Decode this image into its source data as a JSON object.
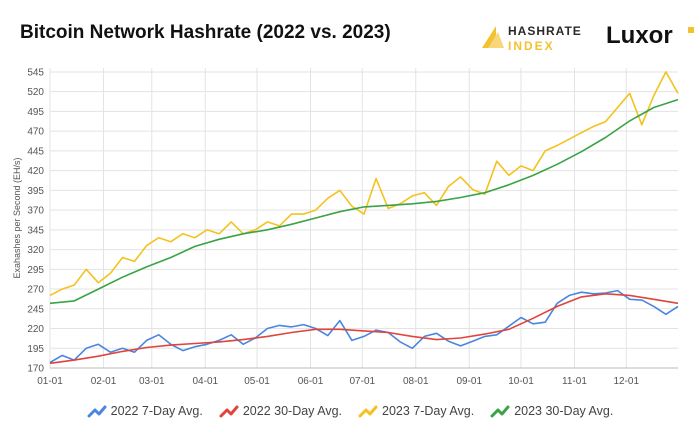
{
  "header": {
    "title": "Bitcoin Network Hashrate (2022 vs. 2023)",
    "logo_hashrate_line1": "HASHRATE",
    "logo_hashrate_line2": "INDEX",
    "logo_luxor": "Luxor"
  },
  "colors": {
    "s2022_7d": "#4a86e0",
    "s2022_30d": "#e0443a",
    "s2023_7d": "#f4c21f",
    "s2023_30d": "#3aa345",
    "logo_accent": "#f2c230"
  },
  "chart_data": {
    "type": "line",
    "ylabel": "Exahashes per Second (EH/s)",
    "xlabel": "",
    "ylim": [
      170,
      550
    ],
    "yticks": [
      170,
      195,
      220,
      245,
      270,
      295,
      320,
      345,
      370,
      395,
      420,
      445,
      470,
      495,
      520,
      545
    ],
    "xlim": [
      1,
      365
    ],
    "xticks": [
      {
        "label": "01-01",
        "day": 1
      },
      {
        "label": "02-01",
        "day": 32
      },
      {
        "label": "03-01",
        "day": 60
      },
      {
        "label": "04-01",
        "day": 91
      },
      {
        "label": "05-01",
        "day": 121
      },
      {
        "label": "06-01",
        "day": 152
      },
      {
        "label": "07-01",
        "day": 182
      },
      {
        "label": "08-01",
        "day": 213
      },
      {
        "label": "09-01",
        "day": 244
      },
      {
        "label": "10-01",
        "day": 274
      },
      {
        "label": "11-01",
        "day": 305
      },
      {
        "label": "12-01",
        "day": 335
      }
    ],
    "grid": true,
    "legend_position": "bottom",
    "series": [
      {
        "name": "2022 7-Day Avg.",
        "color": "#4a86e0",
        "x": [
          1,
          8,
          15,
          22,
          29,
          36,
          43,
          50,
          57,
          64,
          71,
          78,
          85,
          92,
          99,
          106,
          113,
          120,
          127,
          134,
          141,
          148,
          155,
          162,
          169,
          176,
          183,
          190,
          197,
          204,
          211,
          218,
          225,
          232,
          239,
          246,
          253,
          260,
          267,
          274,
          281,
          288,
          295,
          302,
          309,
          316,
          323,
          330,
          337,
          344,
          351,
          358,
          365
        ],
        "y": [
          177,
          186,
          180,
          195,
          200,
          190,
          195,
          190,
          205,
          212,
          200,
          192,
          197,
          200,
          205,
          212,
          200,
          208,
          220,
          224,
          222,
          225,
          220,
          211,
          230,
          205,
          210,
          218,
          215,
          203,
          195,
          210,
          214,
          204,
          198,
          204,
          210,
          212,
          223,
          234,
          226,
          228,
          252,
          262,
          266,
          264,
          265,
          268,
          257,
          256,
          248,
          238,
          248
        ]
      },
      {
        "name": "2022 30-Day Avg.",
        "color": "#e0443a",
        "x": [
          1,
          15,
          29,
          43,
          57,
          71,
          85,
          99,
          113,
          127,
          141,
          155,
          169,
          183,
          197,
          211,
          225,
          239,
          253,
          267,
          281,
          295,
          309,
          323,
          337,
          351,
          365
        ],
        "y": [
          176,
          180,
          185,
          191,
          196,
          199,
          201,
          203,
          206,
          210,
          215,
          219,
          219,
          217,
          215,
          210,
          206,
          208,
          213,
          219,
          233,
          248,
          260,
          264,
          262,
          257,
          252
        ]
      },
      {
        "name": "2023 7-Day Avg.",
        "color": "#f4c21f",
        "x": [
          1,
          8,
          15,
          22,
          29,
          36,
          43,
          50,
          57,
          64,
          71,
          78,
          85,
          92,
          99,
          106,
          113,
          120,
          127,
          134,
          141,
          148,
          155,
          162,
          169,
          176,
          183,
          190,
          197,
          204,
          211,
          218,
          225,
          232,
          239,
          246,
          253,
          260,
          267,
          274,
          281,
          288,
          295,
          302,
          309,
          316,
          323,
          330,
          337,
          344,
          351,
          358,
          365
        ],
        "y": [
          262,
          270,
          275,
          295,
          278,
          290,
          310,
          305,
          325,
          335,
          330,
          340,
          335,
          345,
          340,
          355,
          340,
          345,
          355,
          350,
          365,
          365,
          370,
          385,
          395,
          375,
          365,
          410,
          372,
          378,
          388,
          392,
          376,
          400,
          412,
          396,
          390,
          432,
          414,
          426,
          420,
          445,
          452,
          460,
          468,
          476,
          482,
          500,
          518,
          478,
          515,
          545,
          518
        ]
      },
      {
        "name": "2023 30-Day Avg.",
        "color": "#3aa345",
        "x": [
          1,
          15,
          29,
          43,
          57,
          71,
          85,
          99,
          113,
          127,
          141,
          155,
          169,
          183,
          197,
          211,
          225,
          239,
          253,
          267,
          281,
          295,
          309,
          323,
          337,
          351,
          365
        ],
        "y": [
          252,
          255,
          270,
          285,
          298,
          310,
          324,
          333,
          340,
          345,
          352,
          360,
          368,
          374,
          376,
          378,
          381,
          386,
          392,
          402,
          414,
          428,
          444,
          462,
          483,
          500,
          510
        ]
      }
    ]
  }
}
